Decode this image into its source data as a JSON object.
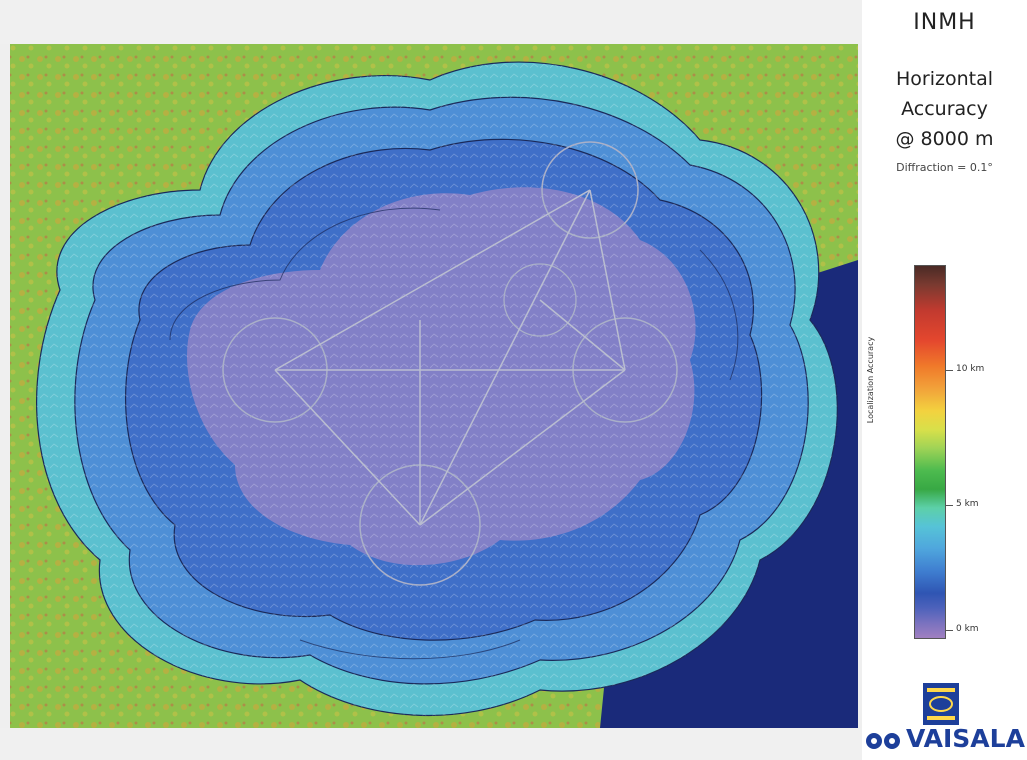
{
  "header": {
    "institution": "INMH",
    "title_line1": "Horizontal",
    "title_line2": "Accuracy",
    "title_line3": "@ 8000 m",
    "diffraction_note": "Diffraction = 0.1°"
  },
  "legend": {
    "axis_label": "Localization Accuracy",
    "ticks": [
      "10 km",
      "5 km",
      "0 km"
    ],
    "colors": [
      "#a07fc0",
      "#2f55b3",
      "#56c3d7",
      "#38a844",
      "#f3d23f",
      "#e4472e",
      "#4a2a25"
    ]
  },
  "map": {
    "terrain_colors": [
      "#7fcf4a",
      "#c9b23e",
      "#c0604a"
    ],
    "water_color": "#1a2a7a",
    "coverage_colors": [
      "#3f6fc8",
      "#4e8fd6",
      "#5bc0cf",
      "#9a86c7"
    ]
  },
  "logo": {
    "brand": "VAISALA",
    "brand_color": "#1d3f9a"
  }
}
